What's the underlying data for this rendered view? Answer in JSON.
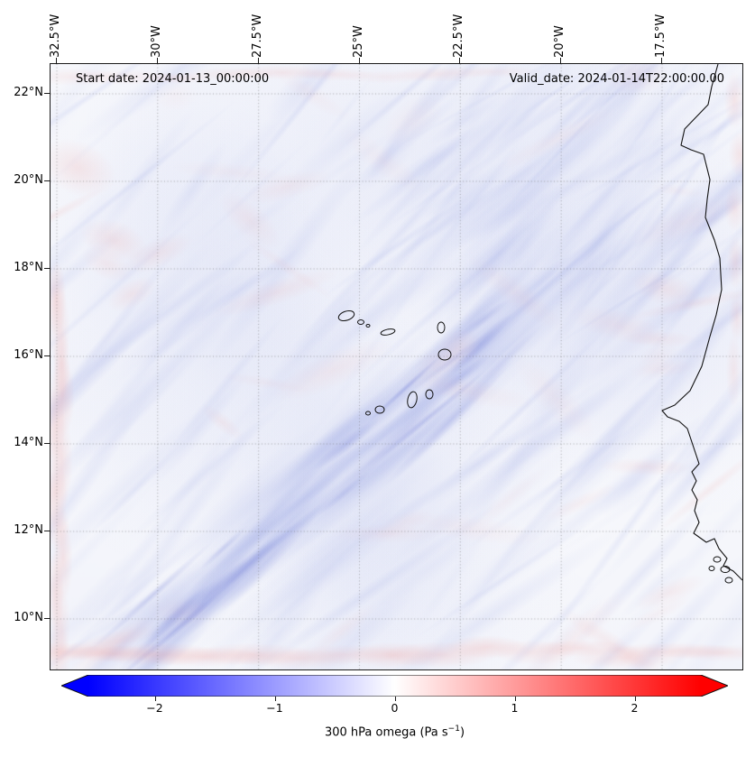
{
  "figure": {
    "start_label": "Start date: 2024-01-13_00:00:00",
    "valid_label": "Valid_date: 2024-01-14T22:00:00.00"
  },
  "axes": {
    "x_tick_labels": [
      "32.5°W",
      "30°W",
      "27.5°W",
      "25°W",
      "22.5°W",
      "20°W",
      "17.5°W"
    ],
    "y_tick_labels": [
      "22°N",
      "20°N",
      "18°N",
      "16°N",
      "14°N",
      "12°N",
      "10°N"
    ]
  },
  "colorbar": {
    "tick_labels": [
      "−2",
      "−1",
      "0",
      "1",
      "2"
    ],
    "label_prefix": "300 hPa omega (Pa s",
    "label_sup": "−1",
    "label_suffix": ")",
    "colormap": "bwr",
    "color_blue": "#0000ff",
    "color_white": "#ffffff",
    "color_red": "#ff0000"
  },
  "chart_data": {
    "type": "heatmap",
    "title": "",
    "annotations": [
      "Start date: 2024-01-13_00:00:00",
      "Valid_date: 2024-01-14T22:00:00.00"
    ],
    "field_label": "300 hPa omega (Pa s⁻¹)",
    "colormap": "bwr",
    "colorbar_tick_values": [
      -2,
      -1,
      0,
      1,
      2
    ],
    "colorbar_extend": "both",
    "value_range_est": [
      -2.8,
      2.8
    ],
    "x_axis": {
      "label": "",
      "tick_labels": [
        "32.5°W",
        "30°W",
        "27.5°W",
        "25°W",
        "22.5°W",
        "20°W",
        "17.5°W"
      ],
      "range_deg_west_est": [
        32.7,
        15.5
      ]
    },
    "y_axis": {
      "label": "",
      "tick_labels": [
        "22°N",
        "20°N",
        "18°N",
        "16°N",
        "14°N",
        "12°N",
        "10°N"
      ],
      "range_deg_north_est": [
        8.9,
        22.7
      ]
    },
    "grid": true,
    "map_features": [
      "West African coastline",
      "Cape Verde islands",
      "Bijagós islands"
    ],
    "coarse_grid_estimate": {
      "lon_deg_west": [
        32.5,
        30,
        27.5,
        25,
        22.5,
        20,
        17.5
      ],
      "lat_deg_north": [
        22,
        20,
        18,
        16,
        14,
        12,
        10
      ],
      "omega_pa_s": [
        [
          -0.1,
          -0.2,
          -0.2,
          -0.3,
          -0.2,
          -0.3,
          -0.1
        ],
        [
          -0.2,
          -0.1,
          -0.3,
          -0.2,
          -0.4,
          -0.2,
          -0.1
        ],
        [
          -0.1,
          -0.3,
          -0.2,
          -0.4,
          -0.3,
          -0.2,
          -0.2
        ],
        [
          -0.2,
          -0.4,
          -0.6,
          -0.8,
          -0.5,
          -0.3,
          -0.1
        ],
        [
          -0.3,
          -0.6,
          -0.5,
          -0.4,
          -0.3,
          -0.2,
          0.0
        ],
        [
          -0.4,
          -0.5,
          -0.3,
          -0.2,
          -0.2,
          -0.1,
          0.1
        ],
        [
          -0.2,
          -0.3,
          -0.2,
          -0.1,
          0.0,
          0.1,
          0.2
        ]
      ]
    },
    "pattern_note": "Weak omega values dominated by pale-blue SW–NE oriented streaks (ascent), strongest band running from the lower-left toward the Cape Verde islands; light pink (descent) patches concentrated along the domain edges."
  }
}
